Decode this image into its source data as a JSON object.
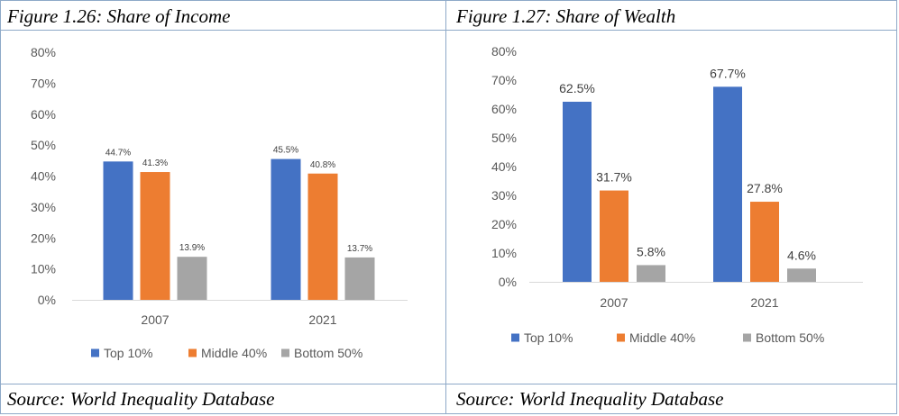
{
  "captions": {
    "left_title": "Figure 1.26: Share of Income",
    "right_title": "Figure 1.27: Share of Wealth",
    "left_source": "Source: World Inequality Database",
    "right_source": "Source: World Inequality Database"
  },
  "colors": {
    "top10": "#4472c4",
    "middle40": "#ed7d31",
    "bottom50": "#a5a5a5",
    "axis_text": "#595959",
    "axis_line": "#d9d9d9"
  },
  "chart_data": [
    {
      "type": "bar",
      "title": "",
      "xlabel": "",
      "ylabel": "",
      "categories": [
        "2007",
        "2021"
      ],
      "ylim": [
        0,
        80
      ],
      "yticks": [
        "0%",
        "10%",
        "20%",
        "30%",
        "40%",
        "50%",
        "60%",
        "70%",
        "80%"
      ],
      "grid": false,
      "legend": "bottom",
      "series": [
        {
          "name": "Top 10%",
          "values": [
            44.7,
            45.5
          ],
          "labels": [
            "44.7%",
            "45.5%"
          ]
        },
        {
          "name": "Middle 40%",
          "values": [
            41.3,
            40.8
          ],
          "labels": [
            "41.3%",
            "40.8%"
          ]
        },
        {
          "name": "Bottom 50%",
          "values": [
            13.9,
            13.7
          ],
          "labels": [
            "13.9%",
            "13.7%"
          ]
        }
      ]
    },
    {
      "type": "bar",
      "title": "",
      "xlabel": "",
      "ylabel": "",
      "categories": [
        "2007",
        "2021"
      ],
      "ylim": [
        0,
        80
      ],
      "yticks": [
        "0%",
        "10%",
        "20%",
        "30%",
        "40%",
        "50%",
        "60%",
        "70%",
        "80%"
      ],
      "grid": false,
      "legend": "bottom",
      "series": [
        {
          "name": "Top 10%",
          "values": [
            62.5,
            67.7
          ],
          "labels": [
            "62.5%",
            "67.7%"
          ]
        },
        {
          "name": "Middle 40%",
          "values": [
            31.7,
            27.8
          ],
          "labels": [
            "31.7%",
            "27.8%"
          ]
        },
        {
          "name": "Bottom 50%",
          "values": [
            5.8,
            4.6
          ],
          "labels": [
            "5.8%",
            "4.6%"
          ]
        }
      ]
    }
  ]
}
